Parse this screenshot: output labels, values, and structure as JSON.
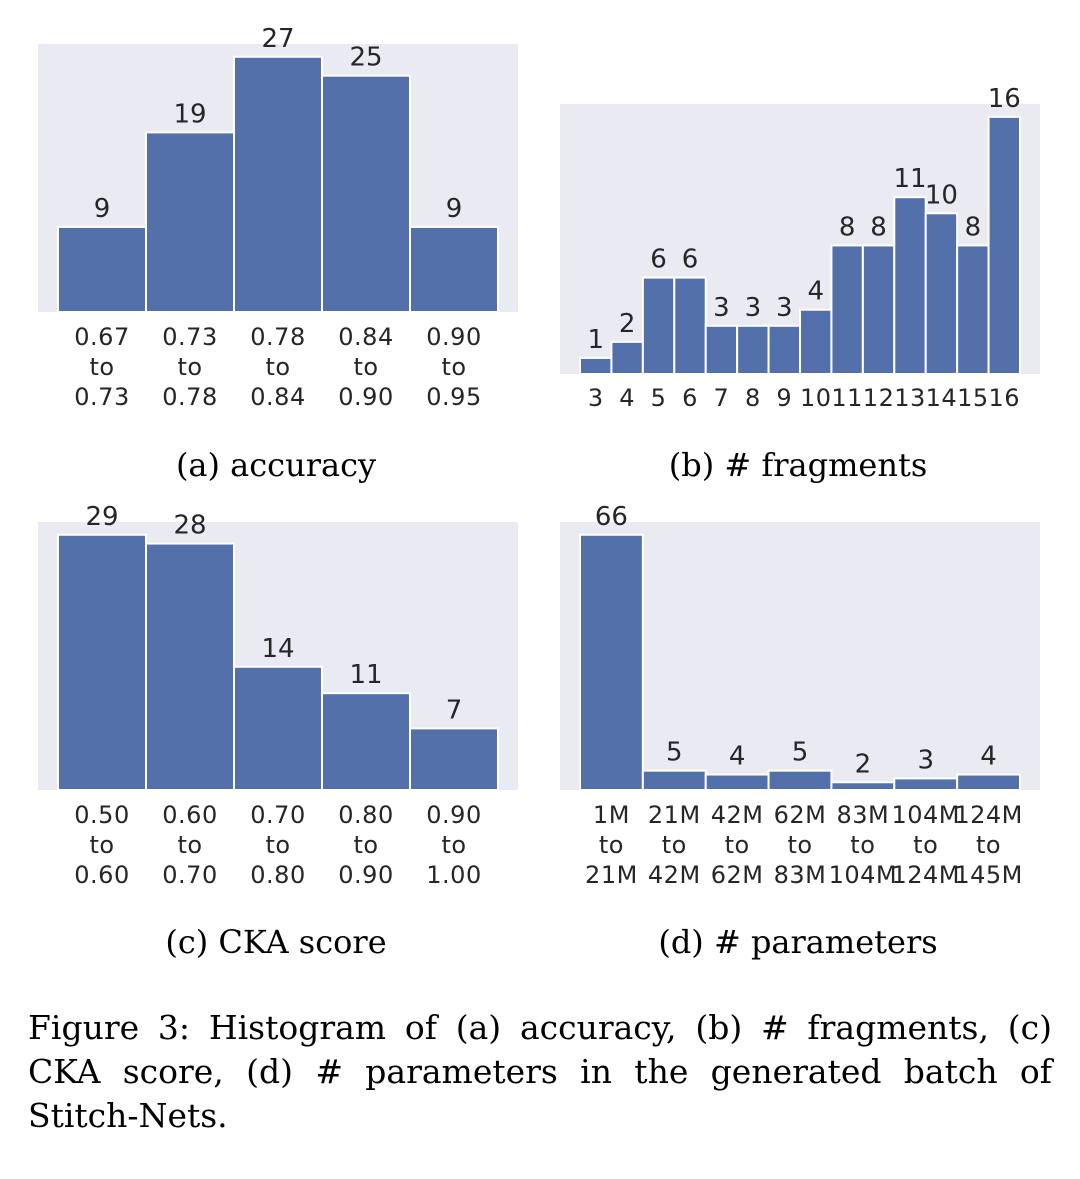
{
  "chart_data": [
    {
      "id": "a",
      "type": "bar",
      "subcaption": "(a) accuracy",
      "categories": [
        [
          "0.67",
          "to",
          "0.73"
        ],
        [
          "0.73",
          "to",
          "0.78"
        ],
        [
          "0.78",
          "to",
          "0.84"
        ],
        [
          "0.84",
          "to",
          "0.90"
        ],
        [
          "0.90",
          "to",
          "0.95"
        ]
      ],
      "values": [
        9,
        19,
        27,
        25,
        9
      ],
      "ylim": [
        0,
        28.35
      ],
      "xlabel": "",
      "ylabel": "",
      "grid": false
    },
    {
      "id": "b",
      "type": "bar",
      "subcaption": "(b) # fragments",
      "categories": [
        [
          "3"
        ],
        [
          "4"
        ],
        [
          "5"
        ],
        [
          "6"
        ],
        [
          "7"
        ],
        [
          "8"
        ],
        [
          "9"
        ],
        [
          "10"
        ],
        [
          "11"
        ],
        [
          "12"
        ],
        [
          "13"
        ],
        [
          "14"
        ],
        [
          "15"
        ],
        [
          "16"
        ]
      ],
      "values": [
        1,
        2,
        6,
        6,
        3,
        3,
        3,
        4,
        8,
        8,
        11,
        10,
        8,
        16
      ],
      "ylim": [
        0,
        16.8
      ],
      "xlabel": "",
      "ylabel": "",
      "grid": false
    },
    {
      "id": "c",
      "type": "bar",
      "subcaption": "(c) CKA score",
      "categories": [
        [
          "0.50",
          "to",
          "0.60"
        ],
        [
          "0.60",
          "to",
          "0.70"
        ],
        [
          "0.70",
          "to",
          "0.80"
        ],
        [
          "0.80",
          "to",
          "0.90"
        ],
        [
          "0.90",
          "to",
          "1.00"
        ]
      ],
      "values": [
        29,
        28,
        14,
        11,
        7
      ],
      "ylim": [
        0,
        30.45
      ],
      "xlabel": "",
      "ylabel": "",
      "grid": false
    },
    {
      "id": "d",
      "type": "bar",
      "subcaption": "(d) # parameters",
      "categories": [
        [
          "1M",
          "to",
          "21M"
        ],
        [
          "21M",
          "to",
          "42M"
        ],
        [
          "42M",
          "to",
          "62M"
        ],
        [
          "62M",
          "to",
          "83M"
        ],
        [
          "83M",
          "to",
          "104M"
        ],
        [
          "104M",
          "to",
          "124M"
        ],
        [
          "124M",
          "to",
          "145M"
        ]
      ],
      "values": [
        66,
        5,
        4,
        5,
        2,
        3,
        4
      ],
      "ylim": [
        0,
        69.3
      ],
      "xlabel": "",
      "ylabel": "",
      "grid": false
    }
  ],
  "caption": "Figure 3: Histogram of (a) accuracy, (b) # fragments, (c) CKA score, (d) # parameters in the generated batch of Stitch-Nets.",
  "colors": {
    "bar": "#5470aa",
    "bar_edge": "#ffffff",
    "panel_bg": "#eaeaf2"
  }
}
